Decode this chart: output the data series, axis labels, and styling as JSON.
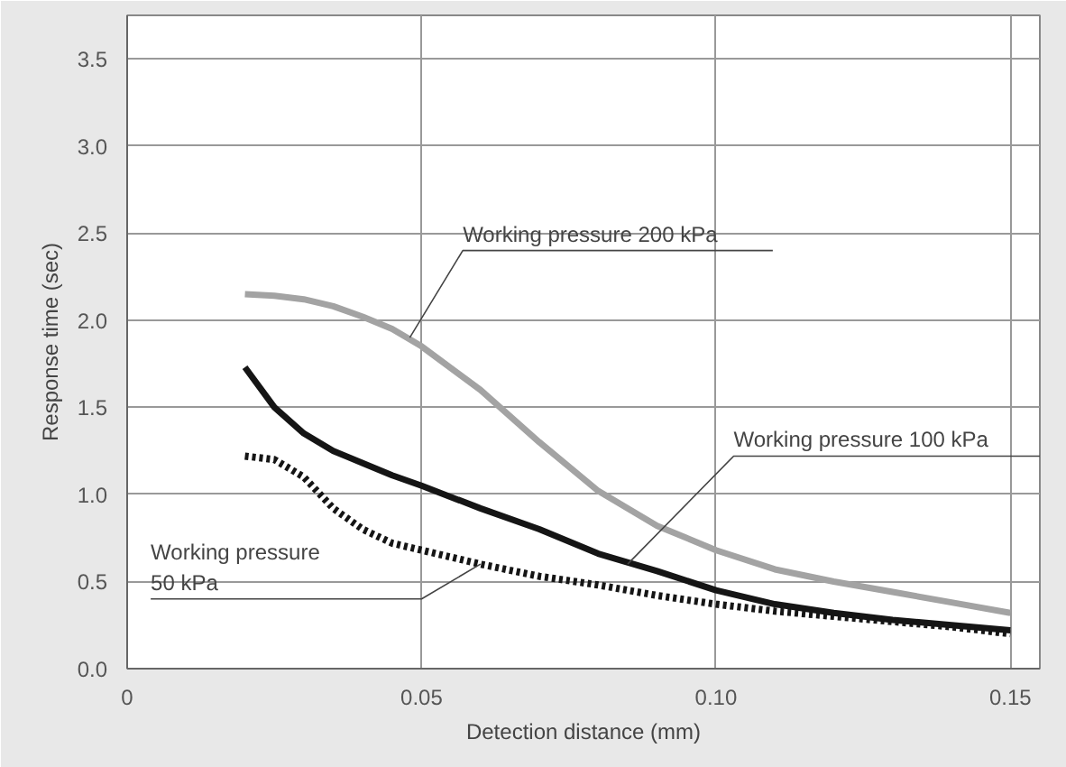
{
  "chart_data": {
    "type": "line",
    "xlabel": "Detection distance (mm)",
    "ylabel": "Response time (sec)",
    "xlim": [
      0,
      0.155
    ],
    "ylim": [
      0,
      3.75
    ],
    "xticks": [
      {
        "value": 0,
        "label": "0"
      },
      0.05,
      {
        "value": 0.1,
        "label": "0.10"
      },
      0.15
    ],
    "yticks": [
      {
        "value": 0,
        "label": "0.0"
      },
      0.5,
      {
        "value": 1,
        "label": "1.0"
      },
      1.5,
      {
        "value": 2,
        "label": "2.0"
      },
      2.5,
      {
        "value": 3,
        "label": "3.0"
      },
      3.5
    ],
    "grid": true,
    "marker": "none",
    "series": [
      {
        "color": "#a3a3a3",
        "line_style": "solid",
        "x": [
          0.02,
          0.025,
          0.03,
          0.035,
          0.04,
          0.045,
          0.05,
          0.06,
          0.07,
          0.08,
          0.09,
          0.1,
          0.11,
          0.12,
          0.13,
          0.14,
          0.15
        ],
        "values": [
          2.15,
          2.14,
          2.12,
          2.08,
          2.02,
          1.95,
          1.85,
          1.6,
          1.3,
          1.02,
          0.82,
          0.68,
          0.57,
          0.5,
          0.44,
          0.38,
          0.32
        ]
      },
      {
        "color": "#151515",
        "line_style": "solid",
        "x": [
          0.02,
          0.025,
          0.03,
          0.035,
          0.04,
          0.045,
          0.05,
          0.06,
          0.07,
          0.08,
          0.09,
          0.1,
          0.11,
          0.12,
          0.13,
          0.14,
          0.15
        ],
        "values": [
          1.73,
          1.5,
          1.35,
          1.25,
          1.18,
          1.11,
          1.05,
          0.92,
          0.8,
          0.66,
          0.56,
          0.45,
          0.37,
          0.32,
          0.28,
          0.25,
          0.22
        ]
      },
      {
        "color": "#151515",
        "line_style": "dotted",
        "x": [
          0.02,
          0.025,
          0.03,
          0.035,
          0.04,
          0.045,
          0.05,
          0.06,
          0.07,
          0.08,
          0.09,
          0.1,
          0.11,
          0.12,
          0.13,
          0.14,
          0.15
        ],
        "values": [
          1.22,
          1.2,
          1.1,
          0.92,
          0.8,
          0.72,
          0.68,
          0.6,
          0.53,
          0.48,
          0.42,
          0.37,
          0.33,
          0.3,
          0.27,
          0.24,
          0.2
        ]
      }
    ],
    "annotations": [
      {
        "text": "Working pressure 200 kPa",
        "x": 0.048,
        "y": 1.9
      },
      {
        "text": "Working pressure 100 kPa",
        "x": 0.085,
        "y": 0.6
      },
      {
        "text": "Working pressure\n50 kPa",
        "x": 0.06,
        "y": 0.6
      }
    ]
  }
}
